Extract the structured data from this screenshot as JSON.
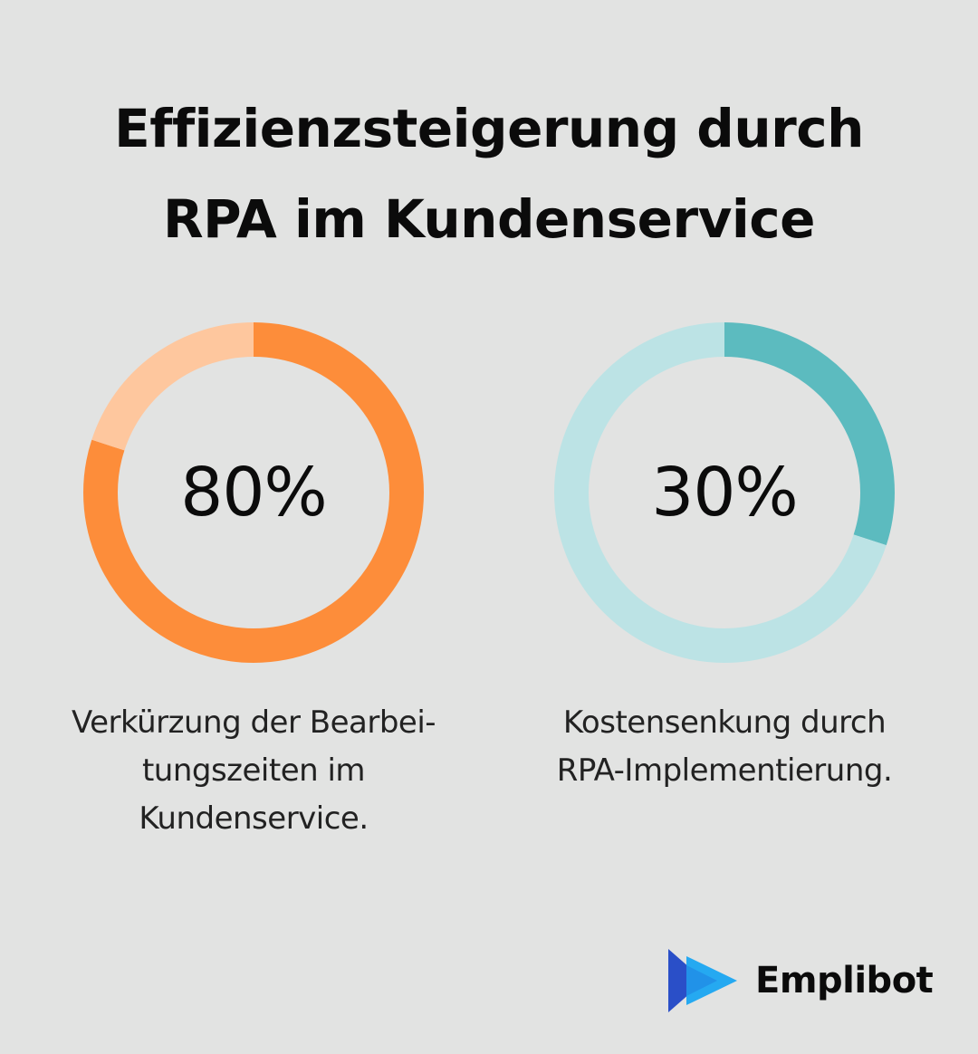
{
  "title": {
    "line1": "Effizienzsteigerung durch",
    "line2": "RPA im Kundenservice"
  },
  "chart_data": [
    {
      "type": "pie",
      "values": [
        80,
        20
      ],
      "label": "80%",
      "caption": [
        "Verkürzung der Bearbei-",
        "tungszeiten im",
        "Kundenservice."
      ],
      "colors": {
        "value": "#fd8d3a",
        "remainder": "#fec79e"
      }
    },
    {
      "type": "pie",
      "values": [
        30,
        70
      ],
      "label": "30%",
      "caption": [
        "Kostensenkung durch",
        "RPA-Implementierung."
      ],
      "colors": {
        "value": "#5cbbbf",
        "remainder": "#bce3e5"
      }
    }
  ],
  "brand": {
    "name": "Emplibot",
    "logo_icon": "play-arrows-icon",
    "colors": {
      "dark": "#2a4fc8",
      "light": "#25a9f1"
    }
  },
  "colors": {
    "background": "#e2e3e2",
    "text": "#0b0b0b"
  }
}
